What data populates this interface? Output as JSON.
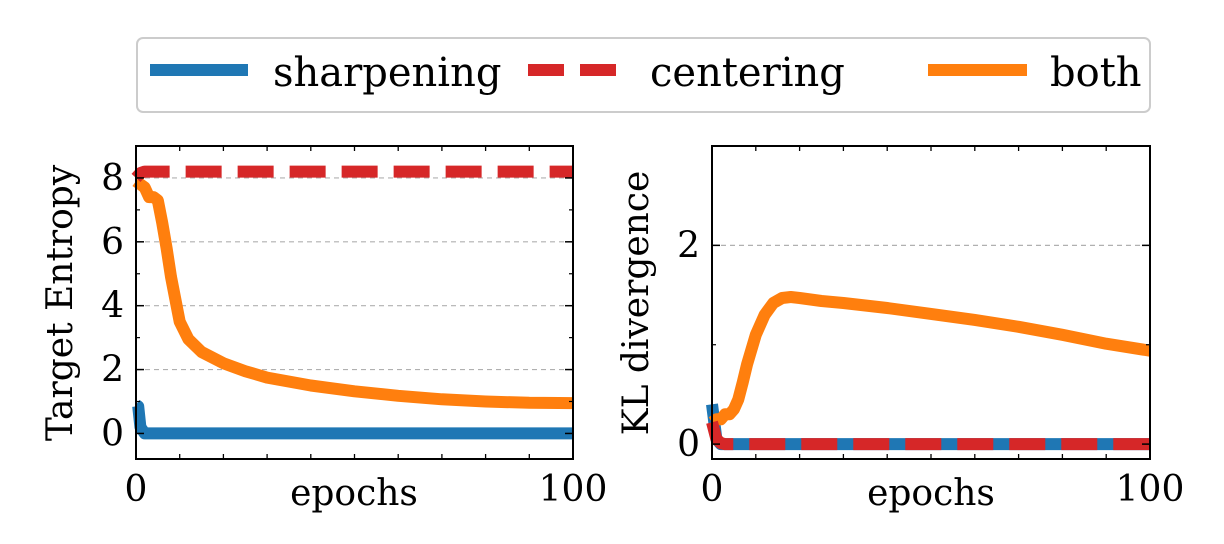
{
  "chart_data": [
    {
      "type": "line",
      "xlabel": "epochs",
      "ylabel": "Target Entropy",
      "xlim": [
        0,
        100
      ],
      "ylim": [
        -0.8,
        9
      ],
      "xticks": [
        "0",
        "100"
      ],
      "yticks": [
        "0",
        "2",
        "4",
        "6",
        "8"
      ],
      "grid": "horizontal dashed",
      "series": [
        {
          "name": "sharpening",
          "x": [
            0,
            0.5,
            1,
            2,
            5,
            100
          ],
          "y": [
            0.9,
            0.85,
            0.2,
            0,
            0,
            0
          ]
        },
        {
          "name": "centering",
          "x": [
            0,
            1,
            2,
            5,
            100
          ],
          "y": [
            8.0,
            8.15,
            8.2,
            8.2,
            8.2
          ]
        },
        {
          "name": "both",
          "x": [
            0,
            1,
            2,
            3,
            4,
            5,
            6,
            7,
            8,
            10,
            12,
            15,
            20,
            25,
            30,
            40,
            50,
            60,
            70,
            80,
            90,
            100
          ],
          "y": [
            7.9,
            7.8,
            7.7,
            7.4,
            7.4,
            7.3,
            6.6,
            5.8,
            4.9,
            3.5,
            2.95,
            2.55,
            2.2,
            1.95,
            1.75,
            1.5,
            1.32,
            1.18,
            1.07,
            1.0,
            0.96,
            0.95
          ]
        }
      ]
    },
    {
      "type": "line",
      "xlabel": "epochs",
      "ylabel": "KL divergence",
      "xlim": [
        0,
        100
      ],
      "ylim": [
        -0.15,
        3.0
      ],
      "xticks": [
        "0",
        "100"
      ],
      "yticks": [
        "0",
        "2"
      ],
      "grid": "horizontal dashed",
      "series": [
        {
          "name": "sharpening",
          "x": [
            0,
            0.3,
            1,
            2,
            100
          ],
          "y": [
            0.4,
            0.3,
            0.05,
            0,
            0
          ]
        },
        {
          "name": "centering",
          "x": [
            0,
            1,
            2,
            3,
            4,
            5,
            100
          ],
          "y": [
            0.22,
            0.05,
            0.01,
            0,
            0,
            0,
            0
          ]
        },
        {
          "name": "both",
          "x": [
            0,
            1,
            2,
            3,
            4,
            5,
            6,
            7,
            8,
            10,
            12,
            14,
            16,
            18,
            20,
            25,
            30,
            40,
            50,
            60,
            70,
            80,
            90,
            100
          ],
          "y": [
            0.22,
            0.25,
            0.25,
            0.3,
            0.3,
            0.35,
            0.45,
            0.62,
            0.8,
            1.1,
            1.3,
            1.42,
            1.47,
            1.48,
            1.47,
            1.44,
            1.42,
            1.37,
            1.31,
            1.25,
            1.18,
            1.1,
            1.01,
            0.94
          ]
        }
      ]
    }
  ],
  "legend": {
    "placement": "top",
    "entries": [
      {
        "label": "sharpening",
        "color": "#1f77b4",
        "style": "solid"
      },
      {
        "label": "centering",
        "color": "#d62728",
        "style": "dashed"
      },
      {
        "label": "both",
        "color": "#ff7f0e",
        "style": "solid"
      }
    ]
  }
}
